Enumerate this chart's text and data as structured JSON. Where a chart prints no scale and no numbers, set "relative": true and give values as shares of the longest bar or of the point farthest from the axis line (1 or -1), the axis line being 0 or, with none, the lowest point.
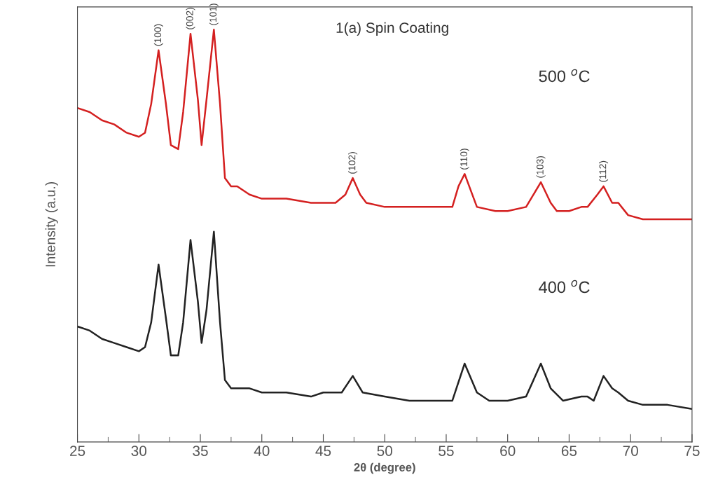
{
  "chart_data": {
    "type": "line",
    "relative": true,
    "xlabel": "2θ (degree)",
    "ylabel": "Intensity (a.u.)",
    "xlim": [
      25,
      75
    ],
    "xticks": [
      25,
      30,
      35,
      40,
      45,
      50,
      55,
      60,
      65,
      70,
      75
    ],
    "tick_labels": "x",
    "x": [
      25,
      26,
      27,
      28,
      29,
      30,
      30.5,
      31,
      31.6,
      32.2,
      32.6,
      33.2,
      33.6,
      34.2,
      34.8,
      35.1,
      35.5,
      36.1,
      36.6,
      37,
      37.5,
      38,
      39,
      40,
      42,
      44,
      45,
      46,
      46.8,
      47.4,
      48,
      48.5,
      50,
      52,
      54,
      55.5,
      56,
      56.5,
      57,
      57.5,
      59,
      60,
      61.5,
      62.7,
      63.5,
      64,
      65,
      66,
      66.5,
      67.3,
      67.8,
      68.5,
      69,
      69.8,
      71,
      73,
      75
    ],
    "series": [
      {
        "color": "#d42020",
        "values": [
          0.81,
          0.8,
          0.78,
          0.77,
          0.75,
          0.74,
          0.75,
          0.82,
          0.95,
          0.82,
          0.72,
          0.71,
          0.8,
          0.99,
          0.83,
          0.72,
          0.83,
          1.0,
          0.82,
          0.64,
          0.62,
          0.62,
          0.6,
          0.59,
          0.59,
          0.58,
          0.58,
          0.58,
          0.6,
          0.64,
          0.6,
          0.58,
          0.57,
          0.57,
          0.57,
          0.57,
          0.62,
          0.65,
          0.61,
          0.57,
          0.56,
          0.56,
          0.57,
          0.63,
          0.58,
          0.56,
          0.56,
          0.57,
          0.57,
          0.6,
          0.62,
          0.58,
          0.58,
          0.55,
          0.54,
          0.54,
          0.54
        ]
      },
      {
        "color": "#222222",
        "x": [
          25,
          26,
          27,
          28,
          29,
          30,
          30.5,
          31,
          31.6,
          32.2,
          32.6,
          33.2,
          33.6,
          34.2,
          34.8,
          35.1,
          35.5,
          36.1,
          36.6,
          37,
          37.5,
          38,
          39,
          40,
          42,
          44,
          45,
          46.5,
          47.4,
          48.2,
          50,
          52,
          54,
          55.5,
          56.5,
          57.5,
          58.5,
          60,
          61.5,
          62.7,
          63.5,
          64.5,
          66,
          66.5,
          67,
          67.8,
          68.5,
          69,
          69.8,
          71,
          73,
          75
        ],
        "values": [
          0.28,
          0.27,
          0.25,
          0.24,
          0.23,
          0.22,
          0.23,
          0.29,
          0.43,
          0.3,
          0.21,
          0.21,
          0.29,
          0.49,
          0.34,
          0.24,
          0.32,
          0.51,
          0.29,
          0.15,
          0.13,
          0.13,
          0.13,
          0.12,
          0.12,
          0.11,
          0.12,
          0.12,
          0.16,
          0.12,
          0.11,
          0.1,
          0.1,
          0.1,
          0.19,
          0.12,
          0.1,
          0.1,
          0.11,
          0.19,
          0.13,
          0.1,
          0.11,
          0.11,
          0.1,
          0.16,
          0.13,
          0.12,
          0.1,
          0.09,
          0.09,
          0.08
        ]
      }
    ],
    "annotations": [
      {
        "text": "(100)",
        "x": 31.6,
        "y": 0.95
      },
      {
        "text": "(002)",
        "x": 34.2,
        "y": 0.99
      },
      {
        "text": "(101)",
        "x": 36.1,
        "y": 1.0
      },
      {
        "text": "(102)",
        "x": 47.4,
        "y": 0.64
      },
      {
        "text": "(110)",
        "x": 56.5,
        "y": 0.65
      },
      {
        "text": "(103)",
        "x": 62.7,
        "y": 0.63
      },
      {
        "text": "(112)",
        "x": 67.8,
        "y": 0.62
      },
      "1(a) Spin Coating",
      "500 $^{o}$C",
      "400 $^{o}$C"
    ]
  }
}
